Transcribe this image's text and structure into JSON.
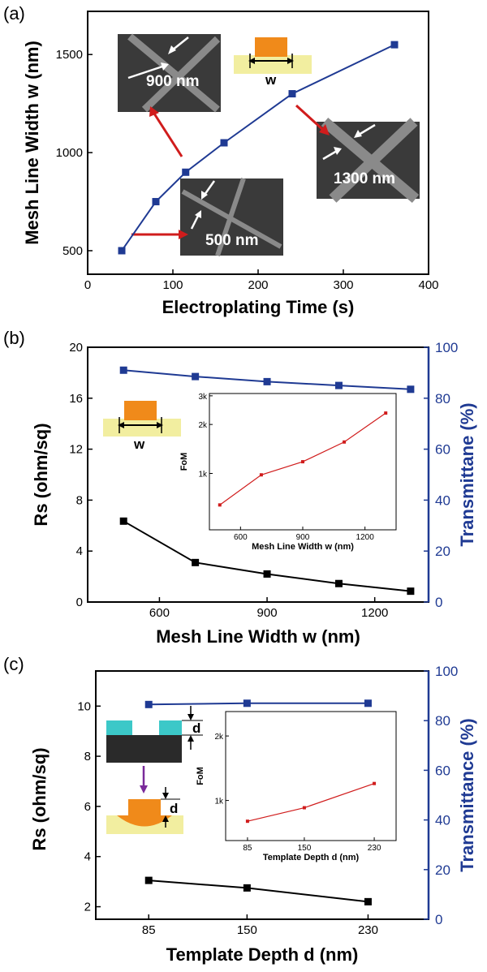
{
  "colors": {
    "blue": "#1f3a93",
    "black": "#000000",
    "red": "#d01c1c",
    "orange": "#f08a1a",
    "substrate": "#f2eea0",
    "cyan": "#3cc8c8",
    "purple": "#7a2a9a",
    "sem_bg": "#3a3a3a"
  },
  "chart_data": [
    {
      "id": "a",
      "panel_label": "(a)",
      "type": "line",
      "xlabel": "Electroplating Time (s)",
      "ylabel": "Mesh Line Width w (nm)",
      "xlim": [
        0,
        400
      ],
      "ylim": [
        380,
        1720
      ],
      "xticks": [
        "0",
        "100",
        "200",
        "300",
        "400"
      ],
      "xtick_values": [
        0,
        100,
        200,
        300,
        400
      ],
      "yticks": [
        "500",
        "1000",
        "1500"
      ],
      "ytick_values": [
        500,
        1000,
        1500
      ],
      "series": [
        {
          "name": "Mesh line width",
          "color": "#1f3a93",
          "marker": "square",
          "x": [
            40,
            80,
            115,
            160,
            240,
            360
          ],
          "y": [
            500,
            750,
            900,
            1050,
            1300,
            1550
          ]
        }
      ],
      "annotations": [
        "900 nm",
        "1300 nm",
        "500 nm",
        "w"
      ]
    },
    {
      "id": "b",
      "panel_label": "(b)",
      "type": "line",
      "xlabel": "Mesh Line Width w (nm)",
      "ylabel": "Rs (ohm/sq)",
      "ylabel_right": "Transmittane (%)",
      "xlim": [
        400,
        1350
      ],
      "ylim": [
        0,
        20
      ],
      "ylim_right": [
        0,
        100
      ],
      "xticks": [
        "600",
        "900",
        "1200"
      ],
      "xtick_values": [
        600,
        900,
        1200
      ],
      "yticks": [
        "0",
        "4",
        "8",
        "12",
        "16",
        "20"
      ],
      "ytick_values": [
        0,
        4,
        8,
        12,
        16,
        20
      ],
      "yticks_right": [
        "0",
        "20",
        "40",
        "60",
        "80",
        "100"
      ],
      "ytick_values_right": [
        0,
        20,
        40,
        60,
        80,
        100
      ],
      "series": [
        {
          "name": "Rs",
          "axis": "left",
          "color": "#000000",
          "marker": "square",
          "x": [
            500,
            700,
            900,
            1100,
            1300
          ],
          "y": [
            6.35,
            3.1,
            2.2,
            1.45,
            0.85
          ]
        },
        {
          "name": "Transmittance",
          "axis": "right",
          "color": "#1f3a93",
          "marker": "square",
          "x": [
            500,
            700,
            900,
            1100,
            1300
          ],
          "y": [
            91,
            88.5,
            86.5,
            85,
            83.5
          ]
        }
      ],
      "inset": {
        "xlabel": "Mesh Line Width w (nm)",
        "ylabel": "FoM",
        "xlim": [
          450,
          1350
        ],
        "ylim": [
          450,
          3100
        ],
        "log": true,
        "xticks": [
          "600",
          "900",
          "1200"
        ],
        "xtick_values": [
          600,
          900,
          1200
        ],
        "yticks": [
          "1k",
          "2k",
          "3k"
        ],
        "ytick_values": [
          1000,
          2000,
          3000
        ],
        "series": [
          {
            "name": "FoM",
            "color": "#d01c1c",
            "marker": "square",
            "x": [
              500,
              700,
              900,
              1100,
              1300
            ],
            "y": [
              640,
              980,
              1180,
              1560,
              2350
            ]
          }
        ]
      },
      "annotations": [
        "w"
      ]
    },
    {
      "id": "c",
      "panel_label": "(c)",
      "type": "line",
      "xlabel": "Template Depth d (nm)",
      "ylabel": "Rs (ohm/sq)",
      "ylabel_right": "Transmittance (%)",
      "xlim": [
        50,
        270
      ],
      "ylim": [
        1.5,
        11.4
      ],
      "ylim_right": [
        0,
        100
      ],
      "xticks": [
        "85",
        "150",
        "230"
      ],
      "xtick_values": [
        85,
        150,
        230
      ],
      "yticks": [
        "2",
        "4",
        "6",
        "8",
        "10"
      ],
      "ytick_values": [
        2,
        4,
        6,
        8,
        10
      ],
      "yticks_right": [
        "0",
        "20",
        "40",
        "60",
        "80",
        "100"
      ],
      "ytick_values_right": [
        0,
        20,
        40,
        60,
        80,
        100
      ],
      "series": [
        {
          "name": "Rs",
          "axis": "left",
          "color": "#000000",
          "marker": "square",
          "x": [
            85,
            150,
            230
          ],
          "y": [
            3.05,
            2.75,
            2.2
          ]
        },
        {
          "name": "Transmittance",
          "axis": "right",
          "color": "#1f3a93",
          "marker": "square",
          "x": [
            85,
            150,
            230
          ],
          "y": [
            86.5,
            87,
            87
          ]
        }
      ],
      "inset": {
        "xlabel": "Template Depth d (nm)",
        "ylabel": "FoM",
        "xlim": [
          60,
          255
        ],
        "ylim": [
          650,
          2600
        ],
        "log": true,
        "xticks": [
          "85",
          "150",
          "230"
        ],
        "xtick_values": [
          85,
          150,
          230
        ],
        "yticks": [
          "1k",
          "2k"
        ],
        "ytick_values": [
          1000,
          2000
        ],
        "series": [
          {
            "name": "FoM",
            "color": "#d01c1c",
            "marker": "square",
            "x": [
              85,
              150,
              230
            ],
            "y": [
              800,
              925,
              1200
            ]
          }
        ]
      },
      "annotations": [
        "d",
        "d"
      ]
    }
  ]
}
